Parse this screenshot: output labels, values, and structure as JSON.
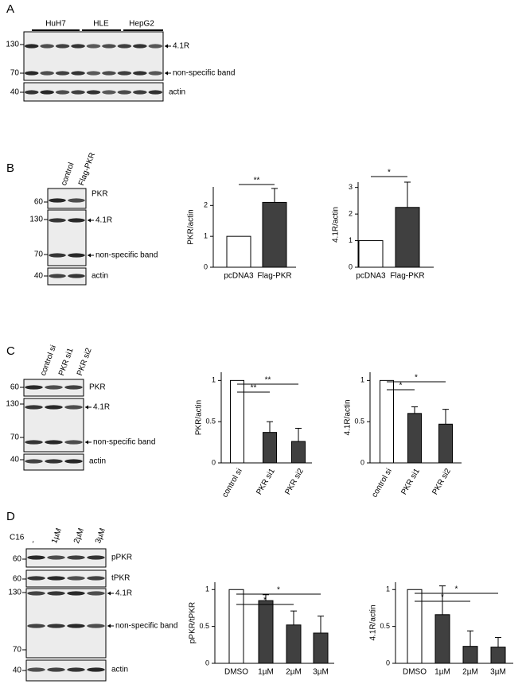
{
  "figure": {
    "panels": [
      {
        "letter": "A",
        "lane_groups": [
          "HuH7",
          "HLE",
          "HepG2"
        ],
        "blots": [
          {
            "markers": [
              130,
              70
            ],
            "labels": [
              "4.1R",
              "non-specific band"
            ]
          },
          {
            "markers": [
              40
            ],
            "labels": [
              "actin"
            ]
          }
        ]
      },
      {
        "letter": "B",
        "lane_labels": [
          "control",
          "Flag-PKR"
        ],
        "blots": [
          {
            "markers": [
              60
            ],
            "labels": [
              "PKR"
            ]
          },
          {
            "markers": [
              130,
              70
            ],
            "labels": [
              "4.1R",
              "non-specific band"
            ]
          },
          {
            "markers": [
              40
            ],
            "labels": [
              "actin"
            ]
          }
        ]
      },
      {
        "letter": "C",
        "lane_labels": [
          "control si",
          "PKR si1",
          "PKR si2"
        ],
        "blots": [
          {
            "markers": [
              60
            ],
            "labels": [
              "PKR"
            ]
          },
          {
            "markers": [
              130,
              70
            ],
            "labels": [
              "4.1R",
              "non-specific band"
            ]
          },
          {
            "markers": [
              40
            ],
            "labels": [
              "actin"
            ]
          }
        ]
      },
      {
        "letter": "D",
        "treatment_label": "C16",
        "lane_labels": [
          "-",
          "1µM",
          "2µM",
          "3µM"
        ],
        "blots": [
          {
            "markers": [
              60
            ],
            "labels": [
              "pPKR"
            ]
          },
          {
            "markers": [
              60
            ],
            "labels": [
              "tPKR"
            ]
          },
          {
            "markers": [
              130,
              70
            ],
            "labels": [
              "4.1R",
              "non-specific band"
            ]
          },
          {
            "markers": [
              40
            ],
            "labels": [
              "actin"
            ]
          }
        ]
      }
    ]
  },
  "chart_data": [
    {
      "type": "bar",
      "ylabel": "PKR/actin",
      "categories": [
        "pcDNA3",
        "Flag-PKR"
      ],
      "values": [
        1,
        2.1
      ],
      "errors": [
        null,
        0.45
      ],
      "colors": [
        "#ffffff",
        "#404040"
      ],
      "ylim": [
        0,
        2.6
      ],
      "yticks": [
        0,
        1,
        2
      ],
      "annotations": [
        {
          "label": "**",
          "between": [
            "pcDNA3",
            "Flag-PKR"
          ]
        }
      ]
    },
    {
      "type": "bar",
      "ylabel": "4.1R/actin",
      "categories": [
        "pcDNA3",
        "Flag-PKR"
      ],
      "values": [
        1,
        2.25
      ],
      "errors": [
        null,
        0.95
      ],
      "colors": [
        "#ffffff",
        "#404040"
      ],
      "ylim": [
        0,
        3.2
      ],
      "yticks": [
        0,
        1,
        2,
        3
      ],
      "annotations": [
        {
          "label": "*",
          "between": [
            "pcDNA3",
            "Flag-PKR"
          ]
        }
      ]
    },
    {
      "type": "bar",
      "ylabel": "PKR/actin",
      "categories": [
        "control si",
        "PKR si1",
        "PKR si2"
      ],
      "values": [
        1,
        0.37,
        0.26
      ],
      "errors": [
        null,
        0.13,
        0.16
      ],
      "colors": [
        "#ffffff",
        "#404040",
        "#404040"
      ],
      "ylim": [
        0,
        1.1
      ],
      "yticks": [
        0,
        0.5,
        1
      ],
      "annotations": [
        {
          "label": "**",
          "between": [
            "control si",
            "PKR si1"
          ]
        },
        {
          "label": "**",
          "between": [
            "control si",
            "PKR si2"
          ]
        }
      ]
    },
    {
      "type": "bar",
      "ylabel": "4.1R/actin",
      "categories": [
        "control si",
        "PKR si1",
        "PKR si2"
      ],
      "values": [
        1,
        0.6,
        0.47
      ],
      "errors": [
        null,
        0.08,
        0.18
      ],
      "colors": [
        "#ffffff",
        "#404040",
        "#404040"
      ],
      "ylim": [
        0,
        1.1
      ],
      "yticks": [
        0,
        0.5,
        1
      ],
      "annotations": [
        {
          "label": "*",
          "between": [
            "control si",
            "PKR si1"
          ]
        },
        {
          "label": "*",
          "between": [
            "control si",
            "PKR si2"
          ]
        }
      ]
    },
    {
      "type": "bar",
      "ylabel": "pPKR/tPKR",
      "categories": [
        "DMSO",
        "1µM",
        "2µM",
        "3µM"
      ],
      "values": [
        1,
        0.85,
        0.52,
        0.41
      ],
      "errors": [
        null,
        0.08,
        0.19,
        0.23
      ],
      "colors": [
        "#ffffff",
        "#404040",
        "#404040",
        "#404040"
      ],
      "ylim": [
        0,
        1.1
      ],
      "yticks": [
        0,
        0.5,
        1
      ],
      "annotations": [
        {
          "label": "*",
          "between": [
            "DMSO",
            "2µM"
          ]
        },
        {
          "label": "*",
          "between": [
            "DMSO",
            "3µM"
          ]
        }
      ]
    },
    {
      "type": "bar",
      "ylabel": "4.1R/actin",
      "categories": [
        "DMSO",
        "1µM",
        "2µM",
        "3µM"
      ],
      "values": [
        1,
        0.66,
        0.23,
        0.22
      ],
      "errors": [
        null,
        0.39,
        0.21,
        0.13
      ],
      "colors": [
        "#ffffff",
        "#404040",
        "#404040",
        "#404040"
      ],
      "ylim": [
        0,
        1.1
      ],
      "yticks": [
        0,
        0.5,
        1
      ],
      "annotations": [
        {
          "label": "*",
          "between": [
            "DMSO",
            "2µM"
          ]
        },
        {
          "label": "*",
          "between": [
            "DMSO",
            "3µM"
          ]
        }
      ]
    }
  ]
}
